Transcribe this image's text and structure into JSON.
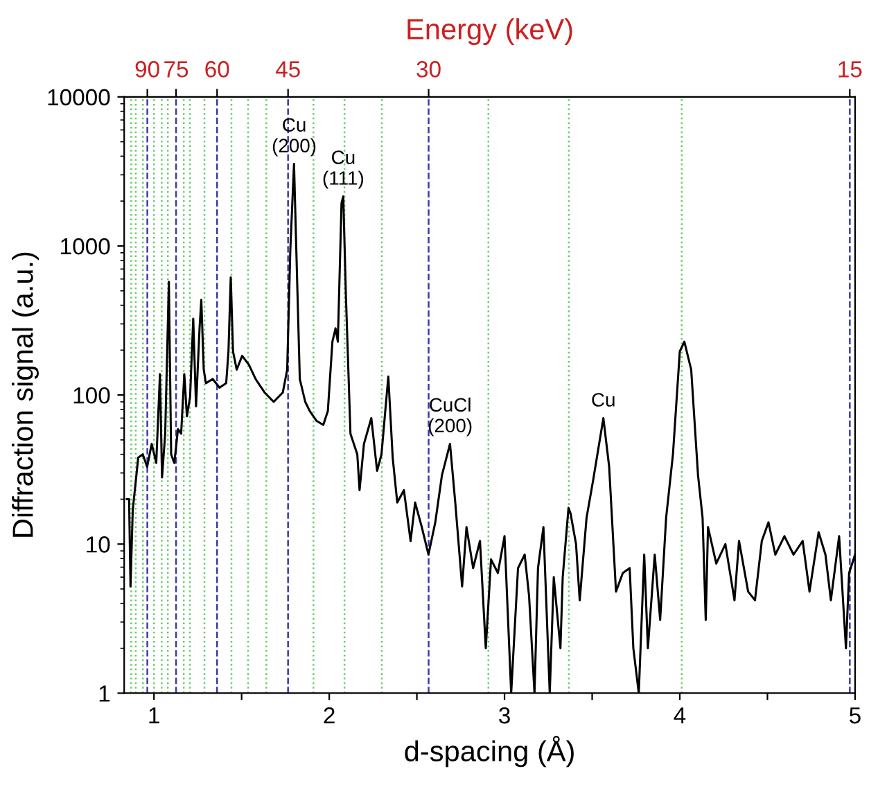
{
  "chart_data": {
    "type": "line",
    "xlabel": "d-spacing (Å)",
    "ylabel": "Diffraction signal (a.u.)",
    "x2label": "Energy (keV)",
    "log": "y",
    "grid": false,
    "legend": false,
    "marker": "none",
    "line_style": "solid",
    "xlim": [
      0.83,
      5
    ],
    "ylim": [
      1,
      10000
    ],
    "xticks": [
      1,
      {
        "value": 1.5,
        "label": null
      },
      2,
      {
        "value": 2.5,
        "label": null
      },
      3,
      {
        "value": 3.5,
        "label": null
      },
      4,
      {
        "value": 4.5,
        "label": null
      },
      5
    ],
    "yticks": [
      1,
      10,
      100,
      1000,
      10000
    ],
    "series": [
      {
        "color": "#000000",
        "x": [
          0.845,
          0.858,
          0.866,
          0.879,
          0.897,
          0.91,
          0.936,
          0.961,
          0.987,
          1.013,
          1.034,
          1.046,
          1.064,
          1.085,
          1.098,
          1.116,
          1.137,
          1.155,
          1.173,
          1.188,
          1.206,
          1.224,
          1.24,
          1.26,
          1.27,
          1.284,
          1.296,
          1.335,
          1.374,
          1.412,
          1.425,
          1.438,
          1.451,
          1.472,
          1.503,
          1.541,
          1.58,
          1.631,
          1.683,
          1.735,
          1.76,
          1.778,
          1.799,
          1.812,
          1.832,
          1.863,
          1.889,
          1.928,
          1.966,
          1.992,
          2.018,
          2.036,
          2.049,
          2.07,
          2.08,
          2.095,
          2.121,
          2.16,
          2.173,
          2.198,
          2.24,
          2.273,
          2.298,
          2.337,
          2.362,
          2.388,
          2.426,
          2.464,
          2.49,
          2.528,
          2.566,
          2.605,
          2.643,
          2.689,
          2.719,
          2.758,
          2.783,
          2.821,
          2.86,
          2.893,
          2.923,
          2.962,
          3.0,
          3.038,
          3.077,
          3.115,
          3.14,
          3.171,
          3.191,
          3.222,
          3.258,
          3.281,
          3.319,
          3.332,
          3.365,
          3.377,
          3.408,
          3.429,
          3.468,
          3.506,
          3.564,
          3.597,
          3.636,
          3.675,
          3.714,
          3.735,
          3.766,
          3.797,
          3.818,
          3.857,
          3.888,
          3.922,
          3.961,
          4.0,
          4.026,
          4.065,
          4.104,
          4.13,
          4.148,
          4.161,
          4.208,
          4.26,
          4.312,
          4.338,
          4.39,
          4.429,
          4.468,
          4.506,
          4.545,
          4.597,
          4.649,
          4.701,
          4.74,
          4.792,
          4.831,
          4.862,
          4.909,
          4.948,
          4.966,
          5.0
        ],
        "values": [
          20,
          20,
          5.2,
          17,
          27,
          38,
          40,
          33,
          47,
          35,
          138,
          28,
          55,
          575,
          40,
          35,
          59,
          55,
          138,
          72,
          97,
          325,
          84,
          280,
          435,
          148,
          120,
          128,
          112,
          120,
          196,
          615,
          196,
          148,
          183,
          160,
          128,
          104,
          90,
          104,
          148,
          950,
          3550,
          950,
          128,
          90,
          78,
          67,
          63,
          78,
          228,
          280,
          228,
          1940,
          2150,
          465,
          55,
          40,
          23,
          47,
          70,
          31,
          40,
          133,
          38,
          19,
          23,
          10.5,
          19,
          13,
          8.5,
          14,
          29,
          47,
          19,
          5.2,
          13,
          6.9,
          10.5,
          2.0,
          7.9,
          6.4,
          11.3,
          1,
          6.9,
          8.5,
          4.5,
          1,
          6.9,
          13,
          1,
          6,
          2.0,
          6,
          17.5,
          16,
          10,
          4.2,
          15,
          27,
          70,
          33,
          4.8,
          6.4,
          6.9,
          2,
          1,
          8.5,
          2,
          8.5,
          3.1,
          15,
          40,
          196,
          228,
          148,
          29,
          15,
          3.1,
          13,
          7.4,
          10,
          4.2,
          10.5,
          4.8,
          4.2,
          10.5,
          14,
          8.5,
          11.3,
          8.5,
          10.5,
          4.8,
          12,
          8.5,
          4.2,
          11.3,
          2,
          6.4,
          8.5
        ]
      }
    ],
    "ref_lines": [
      {
        "axis": "x",
        "value": 0.962,
        "color": "#3c3ca8",
        "line_style": "dashed"
      },
      {
        "axis": "x",
        "value": 1.126,
        "color": "#3c3ca8",
        "line_style": "dashed"
      },
      {
        "axis": "x",
        "value": 1.36,
        "color": "#3c3ca8",
        "line_style": "dashed"
      },
      {
        "axis": "x",
        "value": 1.765,
        "color": "#3c3ca8",
        "line_style": "dashed"
      },
      {
        "axis": "x",
        "value": 2.567,
        "color": "#3c3ca8",
        "line_style": "dashed"
      },
      {
        "axis": "x",
        "value": 4.97,
        "color": "#3c3ca8",
        "line_style": "dashed"
      },
      {
        "axis": "x",
        "value": 0.87,
        "color": "#66cc66",
        "line_style": "dotted"
      },
      {
        "axis": "x",
        "value": 0.896,
        "color": "#66cc66",
        "line_style": "dotted"
      },
      {
        "axis": "x",
        "value": 0.937,
        "color": "#66cc66",
        "line_style": "dotted"
      },
      {
        "axis": "x",
        "value": 1.0,
        "color": "#66cc66",
        "line_style": "dotted"
      },
      {
        "axis": "x",
        "value": 1.044,
        "color": "#66cc66",
        "line_style": "dotted"
      },
      {
        "axis": "x",
        "value": 1.079,
        "color": "#66cc66",
        "line_style": "dotted"
      },
      {
        "axis": "x",
        "value": 1.17,
        "color": "#66cc66",
        "line_style": "dotted"
      },
      {
        "axis": "x",
        "value": 1.205,
        "color": "#66cc66",
        "line_style": "dotted"
      },
      {
        "axis": "x",
        "value": 1.288,
        "color": "#66cc66",
        "line_style": "dotted"
      },
      {
        "axis": "x",
        "value": 1.442,
        "color": "#66cc66",
        "line_style": "dotted"
      },
      {
        "axis": "x",
        "value": 1.537,
        "color": "#66cc66",
        "line_style": "dotted"
      },
      {
        "axis": "x",
        "value": 1.641,
        "color": "#66cc66",
        "line_style": "dotted"
      },
      {
        "axis": "x",
        "value": 1.91,
        "color": "#66cc66",
        "line_style": "dotted"
      },
      {
        "axis": "x",
        "value": 2.087,
        "color": "#66cc66",
        "line_style": "dotted"
      },
      {
        "axis": "x",
        "value": 2.3,
        "color": "#66cc66",
        "line_style": "dotted"
      },
      {
        "axis": "x",
        "value": 2.908,
        "color": "#66cc66",
        "line_style": "dotted"
      },
      {
        "axis": "x",
        "value": 3.367,
        "color": "#66cc66",
        "line_style": "dotted"
      },
      {
        "axis": "x",
        "value": 4.011,
        "color": "#66cc66",
        "line_style": "dotted"
      }
    ],
    "annotations": [
      {
        "text": "90",
        "x": 0.962
      },
      {
        "text": "75",
        "x": 1.126
      },
      {
        "text": "60",
        "x": 1.36
      },
      {
        "text": "45",
        "x": 1.765
      },
      {
        "text": "30",
        "x": 2.567
      },
      {
        "text": "15",
        "x": 4.97
      },
      {
        "text": "Cu\n(200)",
        "x": 1.8,
        "y": 3550
      },
      {
        "text": "Cu\n(111)",
        "x": 2.08,
        "y": 2150
      },
      {
        "text": "CuCl\n(200)",
        "x": 2.69,
        "y": 47
      },
      {
        "text": "Cu",
        "x": 3.564,
        "y": 70
      }
    ]
  }
}
